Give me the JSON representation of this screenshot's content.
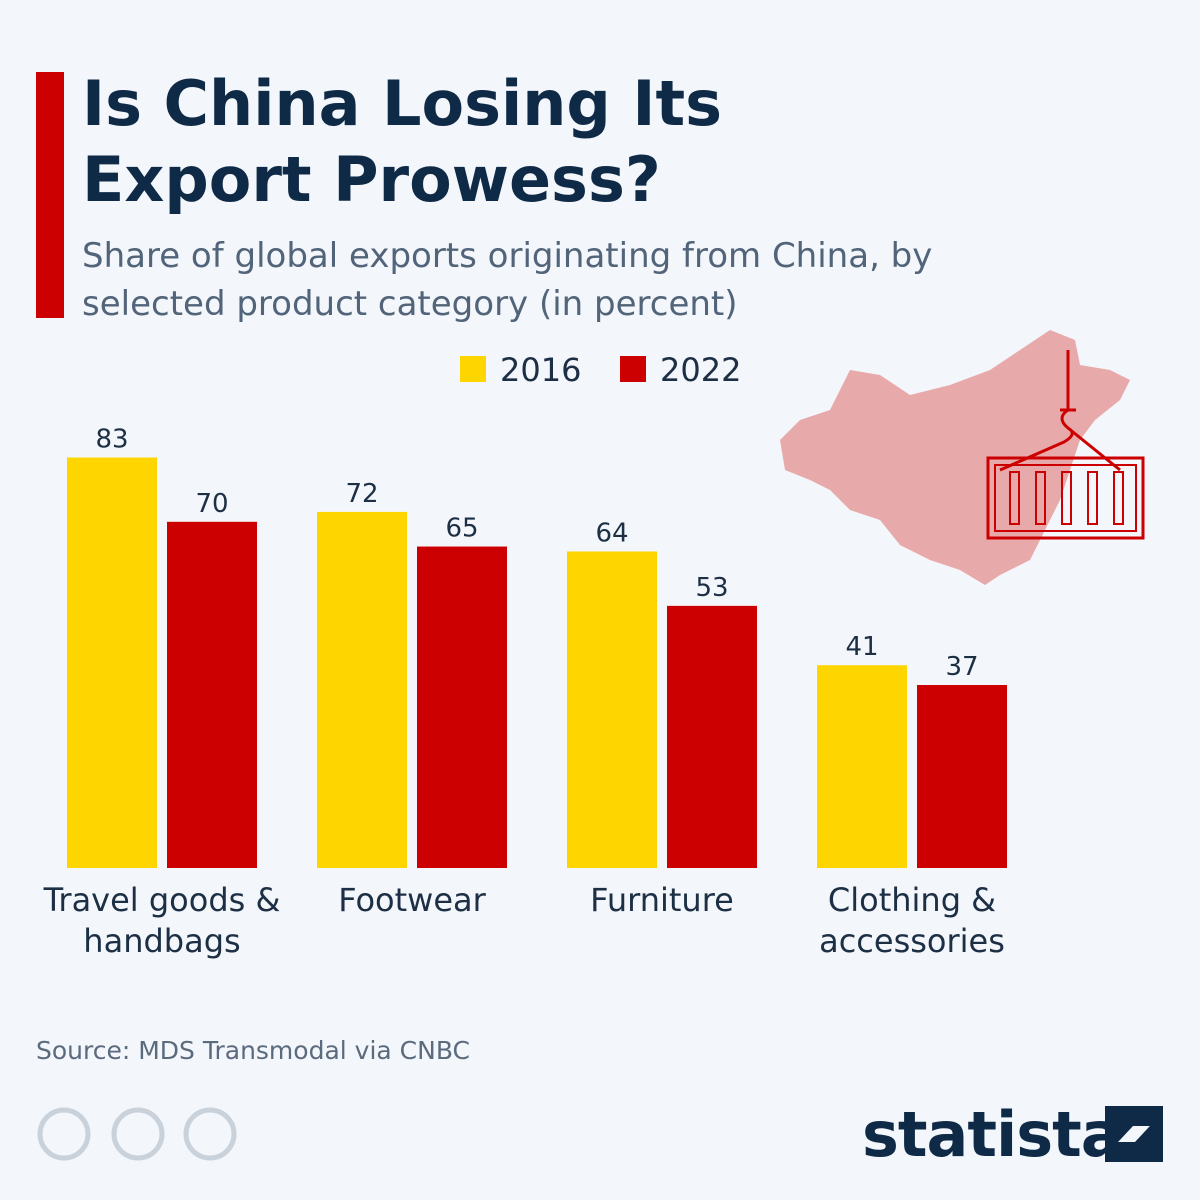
{
  "chart_data": {
    "type": "bar",
    "title": "Is China Losing Its Export Prowess?",
    "subtitle": "Share of global exports originating from China, by selected product category (in percent)",
    "categories": [
      "Travel goods & handbags",
      "Footwear",
      "Furniture",
      "Clothing & accessories"
    ],
    "series": [
      {
        "name": "2016",
        "color": "#ffd500",
        "values": [
          83,
          72,
          64,
          41
        ]
      },
      {
        "name": "2022",
        "color": "#cc0000",
        "values": [
          70,
          65,
          53,
          37
        ]
      }
    ],
    "ylim": [
      0,
      92
    ],
    "source": "Source: MDS Transmodal via CNBC",
    "brand": "statista"
  }
}
